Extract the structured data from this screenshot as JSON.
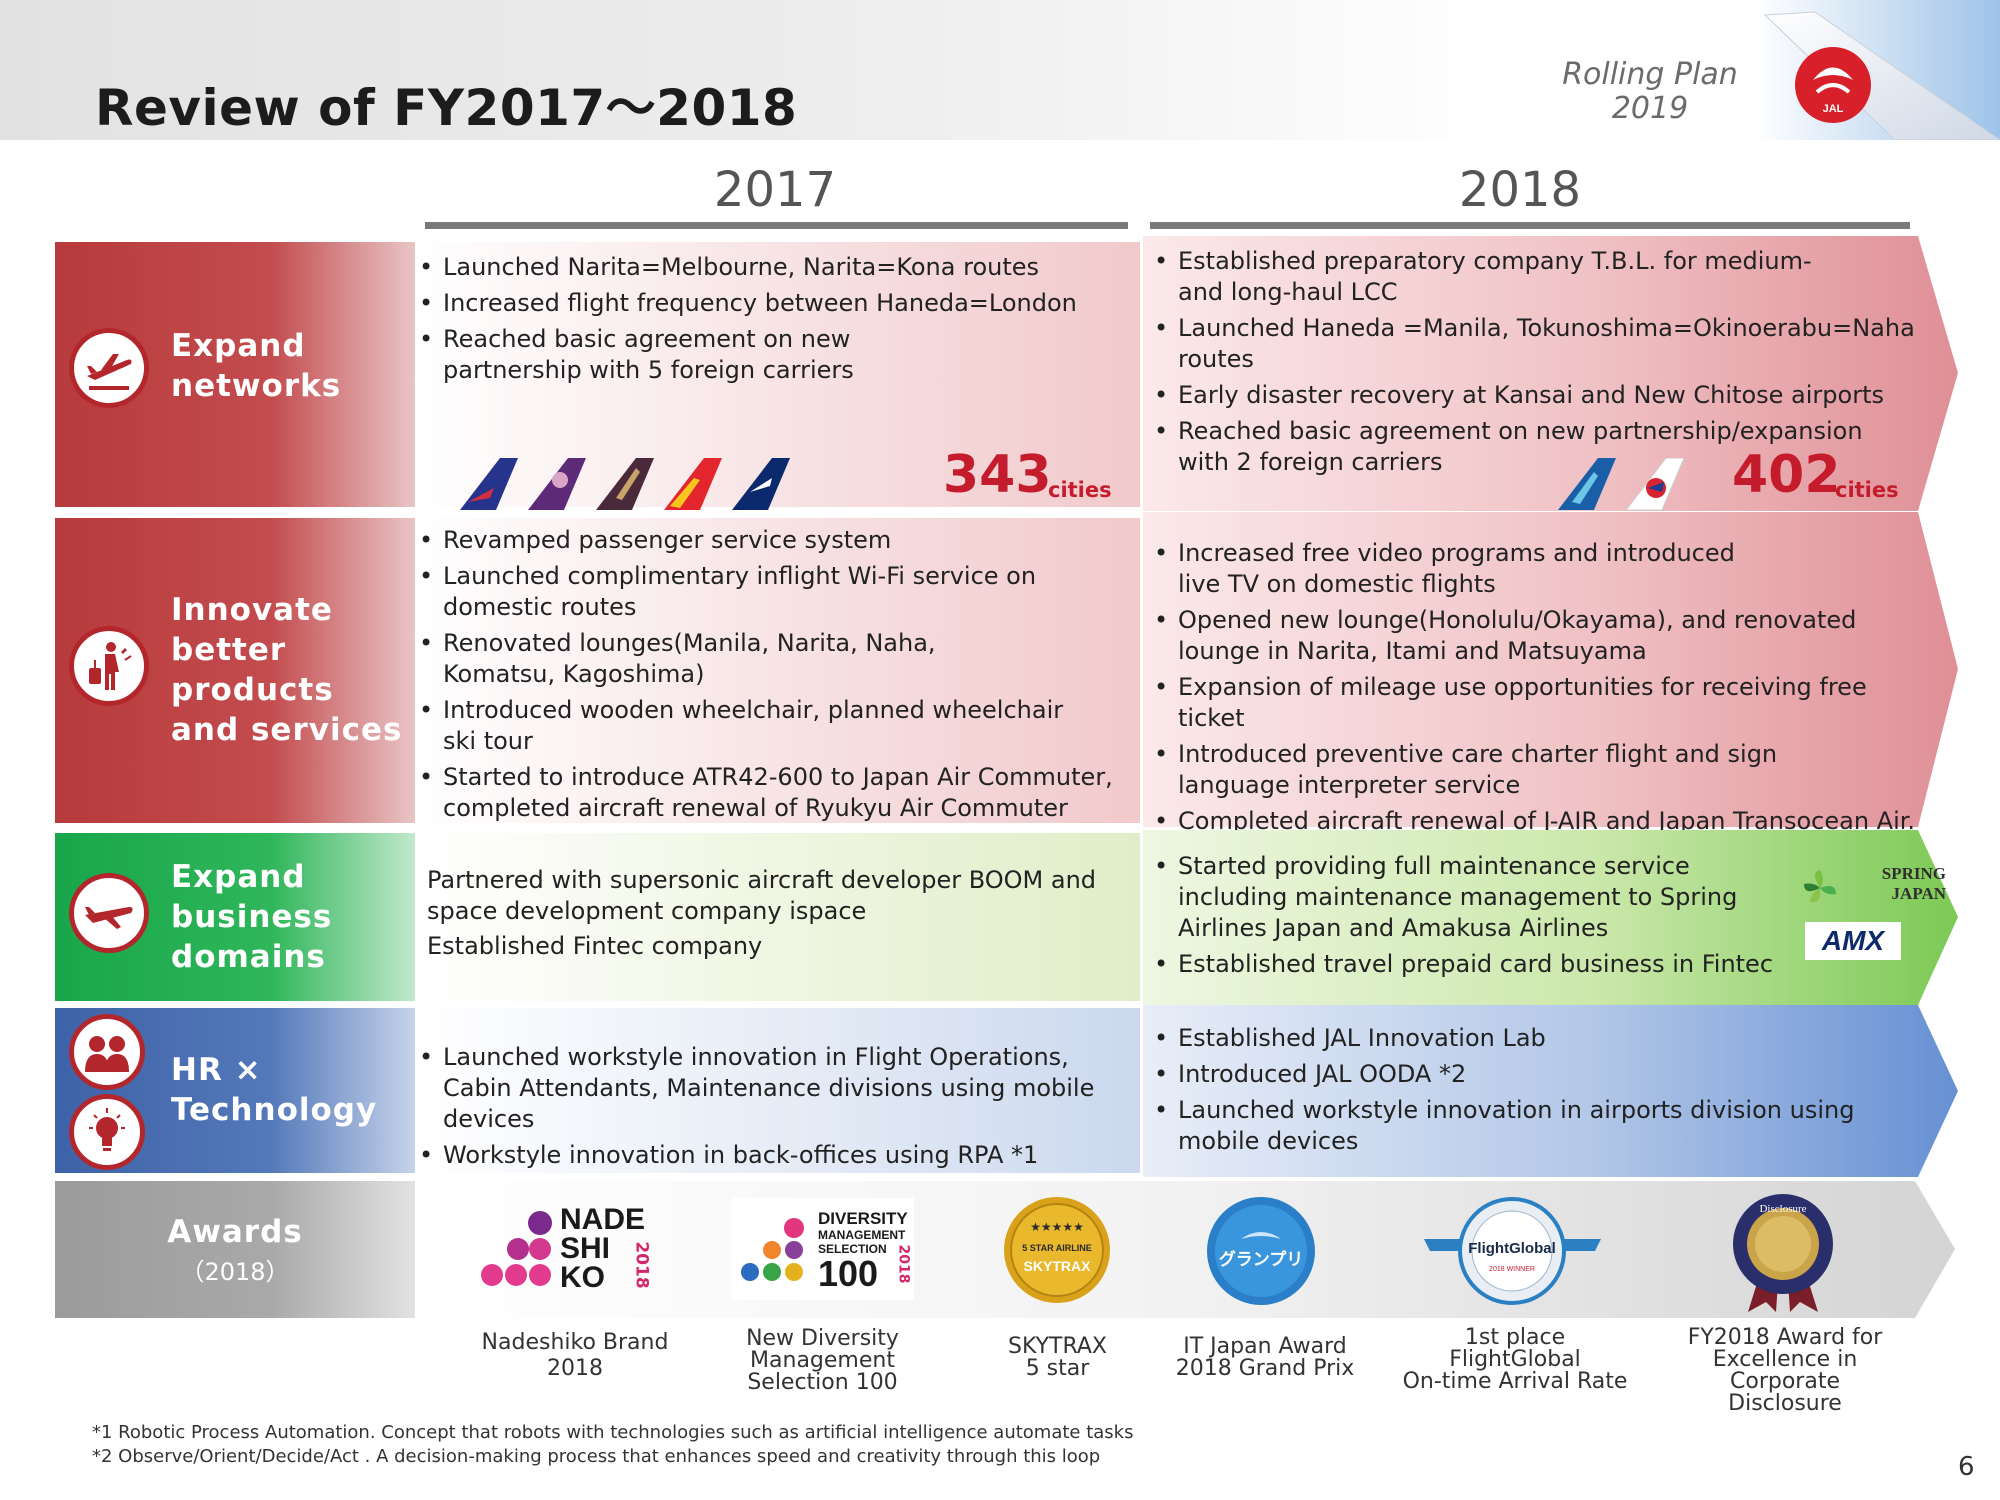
{
  "header": {
    "title": "Review of FY2017～2018",
    "plan_line1": "Rolling Plan",
    "plan_line2": "2019",
    "logo_text": "JAL"
  },
  "years": [
    "2017",
    "2018"
  ],
  "rows": {
    "networks": {
      "label": [
        "Expand",
        "networks"
      ],
      "icon": "airplane-takeoff-icon",
      "y2017": [
        "Launched Narita=Melbourne, Narita=Kona routes",
        "Increased flight frequency between Haneda=London",
        "Reached basic agreement on new partnership with 5 foreign carriers"
      ],
      "y2017_cities": "343",
      "y2018": [
        "Established preparatory company T.B.L. for medium- and long-haul LCC",
        "Launched Haneda =Manila, Tokunoshima=Okinoerabu=Naha routes",
        "Early disaster recovery at Kansai and New Chitose airports",
        "Reached basic agreement on new partnership/expansion with 2 foreign carriers"
      ],
      "y2018_cities": "402",
      "cities_unit": "cities"
    },
    "products": {
      "label": [
        "Innovate",
        "better",
        "products",
        "and services"
      ],
      "icon": "traveler-icon",
      "y2017": [
        "Revamped passenger service system",
        "Launched complimentary inflight Wi-Fi service on domestic routes",
        "Renovated lounges(Manila, Narita, Naha, Komatsu, Kagoshima)",
        "Introduced wooden wheelchair, planned wheelchair ski tour",
        "Started to introduce ATR42-600 to Japan Air Commuter, completed aircraft renewal of Ryukyu Air Commuter"
      ],
      "y2018": [
        "Increased free video programs and introduced live TV on domestic flights",
        "Opened new lounge(Honolulu/Okayama), and renovated lounge in Narita, Itami and Matsuyama",
        "Expansion of mileage use opportunities for receiving free ticket",
        "Introduced preventive care charter flight and sign language interpreter service",
        "Completed aircraft renewal of J-AIR and Japan Transocean Air."
      ]
    },
    "business": {
      "label": [
        "Expand",
        "business",
        "domains"
      ],
      "icon": "aircraft-icon",
      "y2017": [
        "Partnered with supersonic aircraft developer BOOM and space development company ispace",
        "Established Fintec company"
      ],
      "y2018": [
        "Started providing full maintenance service including maintenance management to Spring Airlines Japan and Amakusa Airlines",
        "Established  travel prepaid card business in Fintec"
      ],
      "logo_spring": [
        "SPRING",
        "JAPAN"
      ],
      "logo_amx": "AMX"
    },
    "hr": {
      "label": [
        "HR ×",
        "Technology"
      ],
      "icon_top": "people-icon",
      "icon_bottom": "lightbulb-icon",
      "y2017": [
        "Launched workstyle innovation in Flight Operations, Cabin Attendants, Maintenance divisions using mobile devices",
        "Workstyle innovation in back-offices using RPA *1"
      ],
      "y2018": [
        "Established JAL Innovation Lab",
        "Introduced JAL OODA *2",
        "Launched workstyle innovation in airports division using mobile devices"
      ]
    }
  },
  "awards": {
    "label": "Awards",
    "sublabel": "（2018）",
    "items": [
      {
        "caption": [
          "Nadeshiko Brand",
          "2018"
        ],
        "logo": [
          "NADE",
          "SHI",
          "KO",
          "2018"
        ]
      },
      {
        "caption": [
          "New Diversity",
          "Management",
          "Selection 100"
        ],
        "logo": [
          "DIVERSITY",
          "MANAGEMENT",
          "SELECTION",
          "100",
          "2018"
        ]
      },
      {
        "caption": [
          "SKYTRAX",
          "5 star"
        ],
        "logo": [
          "★★★★★",
          "5 STAR AIRLINE",
          "SKYTRAX"
        ]
      },
      {
        "caption": [
          "IT Japan Award",
          "2018  Grand Prix"
        ],
        "logo": [
          "グランプリ"
        ]
      },
      {
        "caption": [
          "1st place",
          "FlightGlobal",
          "On-time Arrival Rate"
        ],
        "logo": [
          "FlightGlobal",
          "2018 WINNER"
        ]
      },
      {
        "caption": [
          "FY2018 Award for",
          "Excellence in Corporate",
          "Disclosure"
        ],
        "logo": [
          "Disclosure"
        ]
      }
    ]
  },
  "footnotes": [
    "*1  Robotic Process Automation. Concept that robots with technologies such as artificial intelligence automate tasks",
    "*2  Observe/Orient/Decide/Act . A decision-making process that enhances speed and creativity through this loop"
  ],
  "page_number": "6",
  "colors": {
    "red_accent": "#c41c2c",
    "red_row": "#b73a3c",
    "green_row": "#19a64b",
    "blue_row": "#3e62a7",
    "gray_row": "#9b9b9b"
  }
}
